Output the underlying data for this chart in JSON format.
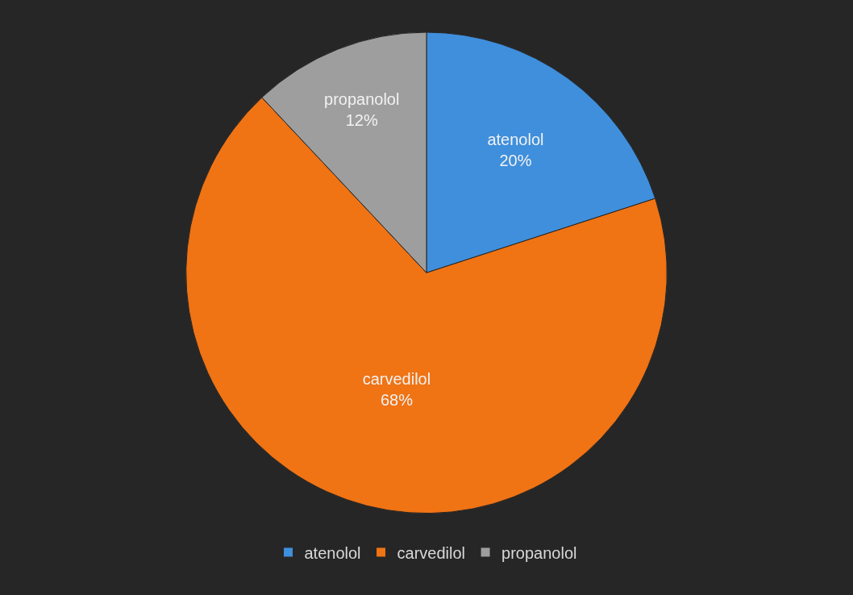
{
  "chart_data": {
    "type": "pie",
    "categories": [
      "atenolol",
      "carvedilol",
      "propanolol"
    ],
    "values": [
      20,
      68,
      12
    ],
    "value_labels": [
      "20%",
      "68%",
      "12%"
    ],
    "colors": [
      "#3f8fdc",
      "#f07314",
      "#9e9e9e"
    ],
    "legend": "bottom"
  }
}
